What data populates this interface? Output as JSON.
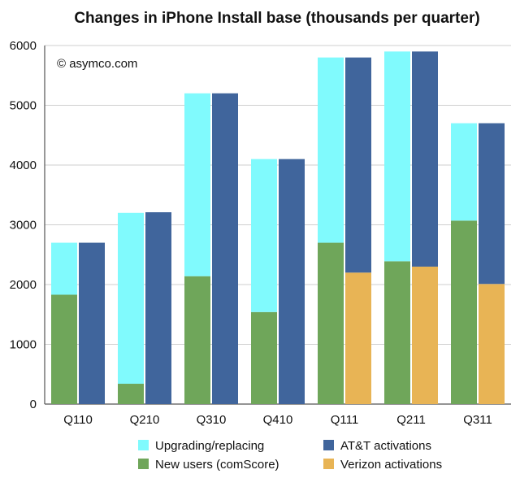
{
  "chart_data": {
    "type": "bar",
    "title": "Changes in iPhone Install base (thousands per quarter)",
    "annotation": "© asymco.com",
    "xlabel": "",
    "ylabel": "",
    "ylim": [
      0,
      6000
    ],
    "yticks": [
      0,
      1000,
      2000,
      3000,
      4000,
      5000,
      6000
    ],
    "categories": [
      "Q110",
      "Q210",
      "Q310",
      "Q410",
      "Q111",
      "Q211",
      "Q311"
    ],
    "stacks": [
      {
        "name": "left",
        "series": [
          {
            "name": "New users (comScore)",
            "color": "#6fa65a",
            "values": [
              1830,
              340,
              2140,
              1540,
              2700,
              2390,
              3070
            ]
          },
          {
            "name": "Upgrading/replacing",
            "color": "#80fafd",
            "values": [
              870,
              2860,
              3060,
              2560,
              3100,
              3510,
              1630
            ]
          }
        ]
      },
      {
        "name": "right",
        "series": [
          {
            "name": "Verizon activations",
            "color": "#e8b455",
            "values": [
              0,
              0,
              0,
              0,
              2200,
              2300,
              2010
            ]
          },
          {
            "name": "AT&T activations",
            "color": "#40659c",
            "values": [
              2700,
              3210,
              5200,
              4100,
              3600,
              3600,
              2690
            ]
          }
        ]
      }
    ],
    "legend": [
      {
        "label": "Upgrading/replacing",
        "color": "#80fafd"
      },
      {
        "label": "AT&T activations",
        "color": "#40659c"
      },
      {
        "label": "New users (comScore)",
        "color": "#6fa65a"
      },
      {
        "label": "Verizon activations",
        "color": "#e8b455"
      }
    ],
    "legend_position": "bottom",
    "grid": true
  }
}
